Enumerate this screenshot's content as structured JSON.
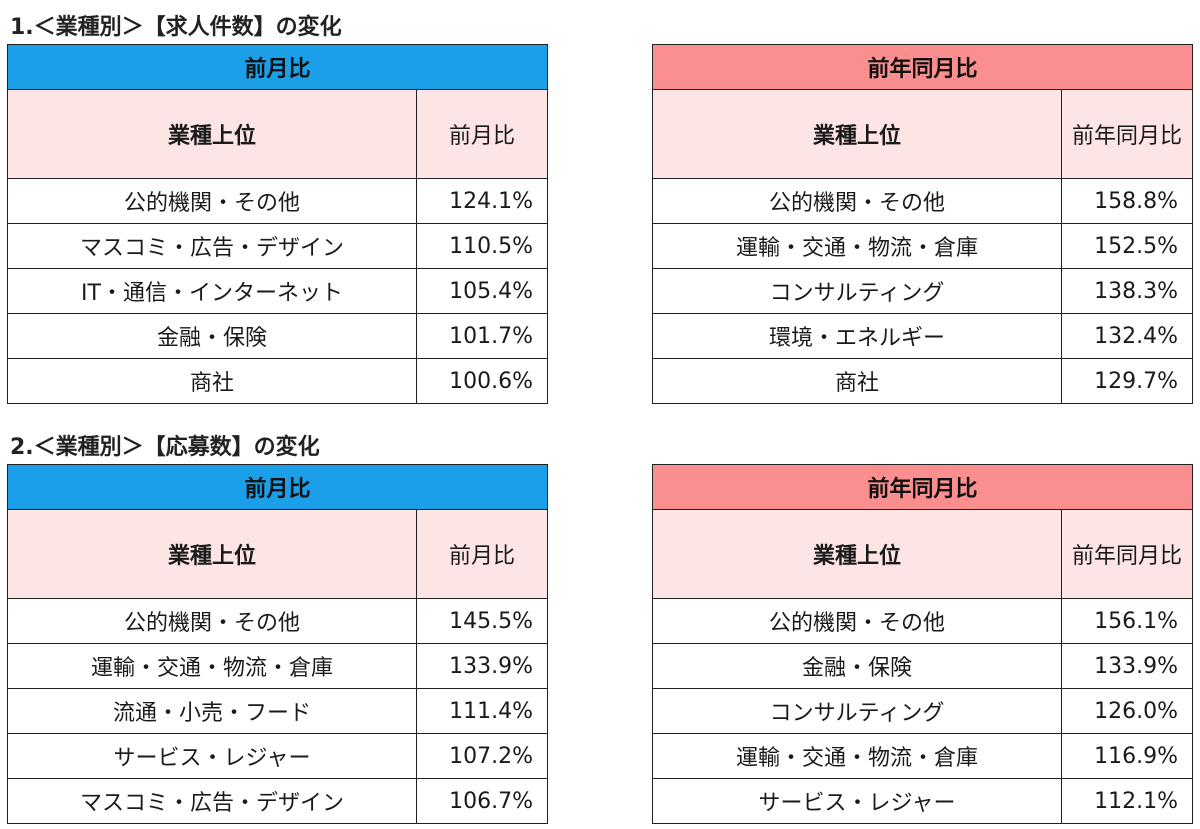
{
  "sections": [
    {
      "title": "1.＜業種別＞【求人件数】の変化",
      "tables": [
        {
          "band": "前月比",
          "header_industry": "業種上位",
          "header_value": "前月比",
          "rows": [
            {
              "industry": "公的機関・その他",
              "value": "124.1%"
            },
            {
              "industry": "マスコミ・広告・デザイン",
              "value": "110.5%"
            },
            {
              "industry": "IT・通信・インターネット",
              "value": "105.4%"
            },
            {
              "industry": "金融・保険",
              "value": "101.7%"
            },
            {
              "industry": "商社",
              "value": "100.6%"
            }
          ]
        },
        {
          "band": "前年同月比",
          "header_industry": "業種上位",
          "header_value": "前年同月比",
          "rows": [
            {
              "industry": "公的機関・その他",
              "value": "158.8%"
            },
            {
              "industry": "運輸・交通・物流・倉庫",
              "value": "152.5%"
            },
            {
              "industry": "コンサルティング",
              "value": "138.3%"
            },
            {
              "industry": "環境・エネルギー",
              "value": "132.4%"
            },
            {
              "industry": "商社",
              "value": "129.7%"
            }
          ]
        }
      ]
    },
    {
      "title": "2.＜業種別＞【応募数】の変化",
      "tables": [
        {
          "band": "前月比",
          "header_industry": "業種上位",
          "header_value": "前月比",
          "rows": [
            {
              "industry": "公的機関・その他",
              "value": "145.5%"
            },
            {
              "industry": "運輸・交通・物流・倉庫",
              "value": "133.9%"
            },
            {
              "industry": "流通・小売・フード",
              "value": "111.4%"
            },
            {
              "industry": "サービス・レジャー",
              "value": "107.2%"
            },
            {
              "industry": "マスコミ・広告・デザイン",
              "value": "106.7%"
            }
          ]
        },
        {
          "band": "前年同月比",
          "header_industry": "業種上位",
          "header_value": "前年同月比",
          "rows": [
            {
              "industry": "公的機関・その他",
              "value": "156.1%"
            },
            {
              "industry": "金融・保険",
              "value": "133.9%"
            },
            {
              "industry": "コンサルティング",
              "value": "126.0%"
            },
            {
              "industry": "運輸・交通・物流・倉庫",
              "value": "116.9%"
            },
            {
              "industry": "サービス・レジャー",
              "value": "112.1%"
            }
          ]
        }
      ]
    }
  ],
  "colors": {
    "month_band": "#1a9fe8",
    "year_band": "#fb8e8f",
    "header_fill": "#fde4e5"
  }
}
